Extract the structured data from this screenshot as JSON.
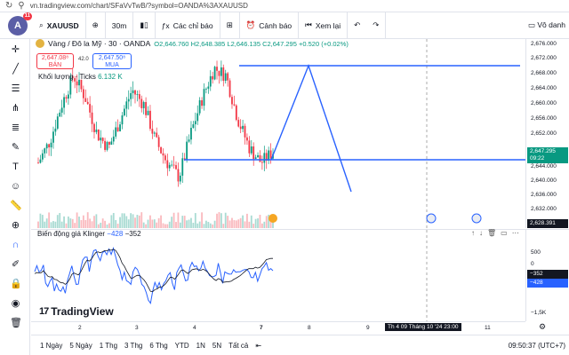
{
  "browser": {
    "url": "vn.tradingview.com/chart/SFaVvTwB/?symbol=OANDA%3AXAUUSD"
  },
  "toolbar": {
    "avatar_letter": "A",
    "notification_count": "11",
    "symbol": "XAUUSD",
    "interval": "30m",
    "indicators": "Các chỉ báo",
    "alerts": "Cảnh báo",
    "replay": "Xem lại",
    "layout_name": "Vô danh"
  },
  "legend": {
    "title": "Vàng / Đô la Mỹ · 30 · OANDA",
    "o": "O2,646.760",
    "h": "H2,648.385",
    "l": "L2,646.135",
    "c": "C2,647.295",
    "chg": "+0.520 (+0.02%)",
    "sell_price": "2,647.08⁸",
    "sell_label": "BÁN",
    "spread": "42.0",
    "buy_price": "2,647.50⁸",
    "buy_label": "MUA",
    "volume_label": "Khối lượng · Ticks",
    "volume_value": "6.132 K"
  },
  "price_axis": {
    "ticks": [
      "2,676.000",
      "2,672.000",
      "2,668.000",
      "2,664.000",
      "2,660.000",
      "2,656.000",
      "2,652.000",
      "2,644.000",
      "2,640.000",
      "2,636.000",
      "2,632.000"
    ],
    "current_price": "2,647.295",
    "current_time": "09:22",
    "bottom_price": "2,628.391"
  },
  "indicator": {
    "name": "Biến động giá Klinger",
    "val1": "−428",
    "val2": "−352",
    "ticks": [
      "500",
      "0",
      "−1,5K"
    ],
    "tag1": "−352",
    "tag2": "−428"
  },
  "time_axis": {
    "ticks": [
      "2",
      "3",
      "4",
      "7",
      "8",
      "9",
      "10",
      "11"
    ],
    "crosshair": "Th 4 09 Tháng 10 '24   23:00"
  },
  "bottom": {
    "ranges": [
      "1 Ngày",
      "5 Ngày",
      "1 Thg",
      "3 Thg",
      "6 Thg",
      "YTD",
      "1N",
      "5N",
      "Tất cả"
    ],
    "clock": "09:50:37 (UTC+7)"
  },
  "logo": {
    "text": "TradingView"
  },
  "colors": {
    "up": "#089981",
    "down": "#f23645",
    "drawing": "#2962ff",
    "klinger1": "#2962ff",
    "klinger2": "#131722"
  },
  "chart_data": {
    "type": "candlestick",
    "symbol": "XAUUSD",
    "interval": "30m",
    "ylim": [
      2626,
      2678
    ],
    "x_labels": [
      "2",
      "3",
      "4",
      "7"
    ],
    "approx_close_path": [
      2644,
      2650,
      2660,
      2668,
      2662,
      2652,
      2648,
      2656,
      2664,
      2660,
      2650,
      2644,
      2640,
      2652,
      2662,
      2670,
      2668,
      2656,
      2648,
      2644,
      2647
    ]
  }
}
